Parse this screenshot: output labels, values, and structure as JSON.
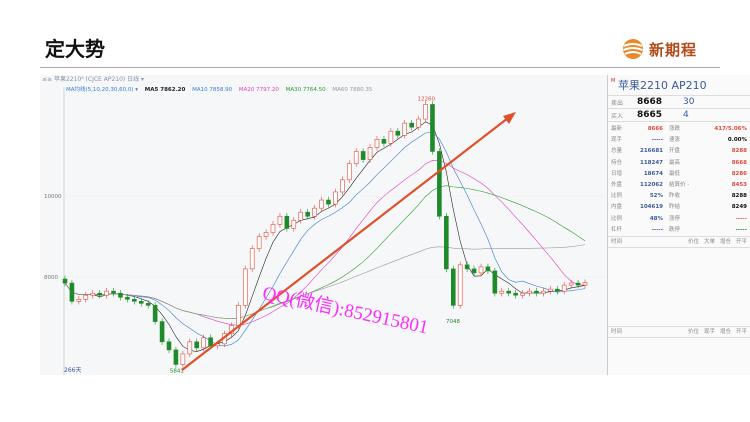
{
  "slide": {
    "title": "定大势",
    "logo_text": "新期程"
  },
  "chart_header": {
    "symbol_line": "≤≥ 苹果2210⁸ (CJCE AP210)  日线 ▾",
    "ma_label": "MA均线(5,10,20,30,60,0) ▾",
    "ma5": "MA5 7862.20",
    "ma10": "MA10 7858.90",
    "ma20": "MA20 7797.20",
    "ma30": "MA30 7764.50",
    "ma60": "MA60 7880.35"
  },
  "colors": {
    "ma5": "#222222",
    "ma10": "#3a7bd5",
    "ma20": "#e040c0",
    "ma30": "#2e9a2e",
    "ma60": "#999999",
    "up": "#e24a3a",
    "down": "#1f8a2a",
    "trend": "#e0502a",
    "watermark": "#ff2cff"
  },
  "chart_data": {
    "type": "candlestick",
    "y_ticks": [
      "10000",
      "8000"
    ],
    "y_tick_values": [
      10000,
      8000
    ],
    "annotations": {
      "high": "12260",
      "low": "5841",
      "low2": "7048",
      "bar_count": "266天"
    },
    "closes": [
      7850,
      7400,
      7450,
      7550,
      7600,
      7550,
      7650,
      7600,
      7500,
      7450,
      7400,
      7350,
      7300,
      6900,
      6400,
      6200,
      5841,
      6100,
      6400,
      6250,
      6500,
      6300,
      6350,
      6600,
      6800,
      7300,
      8200,
      8700,
      9000,
      9100,
      9300,
      9500,
      9200,
      9400,
      9600,
      9500,
      9700,
      9900,
      9800,
      10100,
      10400,
      10800,
      11100,
      10900,
      11200,
      11400,
      11300,
      11600,
      11500,
      11800,
      11700,
      11900,
      12260,
      11100,
      9500,
      8200,
      7300,
      8300,
      8200,
      8100,
      8250,
      8150,
      7600,
      7650,
      7600,
      7550,
      7600,
      7650,
      7600,
      7650,
      7700,
      7650,
      7800,
      7850,
      7800,
      7862
    ],
    "trend_line": "rising support line"
  },
  "watermark": "QQ(微信):852915801",
  "quote_panel": {
    "name": "苹果2210  AP210",
    "flag": "M",
    "ask_label": "卖出",
    "ask_price": "8668",
    "ask_qty": "30",
    "bid_label": "买入",
    "bid_price": "8665",
    "bid_qty": "4",
    "rows": [
      {
        "l1": "最新",
        "v1": "8666",
        "c1": "#e24a3a",
        "l2": "涨跌",
        "v2": "417/5.06%",
        "c2": "#e24a3a"
      },
      {
        "l1": "现手",
        "v1": "-----",
        "c1": "#3a5a9a",
        "l2": "速涨",
        "v2": "0.00%",
        "c2": "#111111"
      },
      {
        "l1": "总量",
        "v1": "216681",
        "c1": "#3a5a9a",
        "l2": "开盘",
        "v2": "8288",
        "c2": "#e24a3a"
      },
      {
        "l1": "持仓",
        "v1": "118247",
        "c1": "#3a5a9a",
        "l2": "最高",
        "v2": "8668",
        "c2": "#e24a3a"
      },
      {
        "l1": "日增",
        "v1": "18674",
        "c1": "#3a5a9a",
        "l2": "最低",
        "v2": "8286",
        "c2": "#e24a3a"
      },
      {
        "l1": "外盘",
        "v1": "112062",
        "c1": "#3a5a9a",
        "l2": "结算价 -",
        "v2": "8453",
        "c2": "#e24a3a"
      },
      {
        "l1": "比例",
        "v1": "52%",
        "c1": "#3a5a9a",
        "l2": "昨收",
        "v2": "8288",
        "c2": "#111111"
      },
      {
        "l1": "内盘",
        "v1": "104619",
        "c1": "#3a5a9a",
        "l2": "昨结",
        "v2": "8249",
        "c2": "#111111"
      },
      {
        "l1": "比例",
        "v1": "48%",
        "c1": "#3a5a9a",
        "l2": "涨停",
        "v2": "-----",
        "c2": "#e24a3a"
      },
      {
        "l1": "杠杆",
        "v1": "-----",
        "c1": "#3a5a9a",
        "l2": "跌停",
        "v2": "-----",
        "c2": "#1f8a2a"
      }
    ],
    "table1": {
      "time": "时间",
      "cols": [
        "价位",
        "大单",
        "增仓",
        "开平"
      ]
    },
    "table2": {
      "time": "时间",
      "cols": [
        "价位",
        "现手",
        "增仓",
        "开平"
      ]
    }
  }
}
